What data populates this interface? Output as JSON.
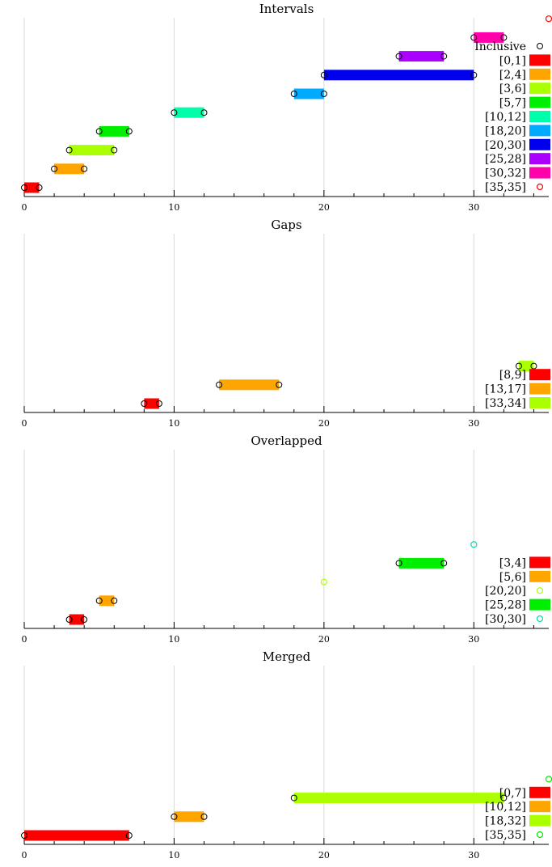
{
  "chart_data": [
    {
      "type": "interval",
      "title": "Intervals",
      "xlim": [
        0,
        35
      ],
      "xticks": [
        "0",
        "10",
        "20",
        "30"
      ],
      "grid": true,
      "legend_position": "right",
      "legend_header": "Inclusive",
      "series": [
        {
          "name": "[0,1]",
          "start": 0,
          "end": 1,
          "color": "#ff0000"
        },
        {
          "name": "[2,4]",
          "start": 2,
          "end": 4,
          "color": "#ffa500"
        },
        {
          "name": "[3,6]",
          "start": 3,
          "end": 6,
          "color": "#aaff00"
        },
        {
          "name": "[5,7]",
          "start": 5,
          "end": 7,
          "color": "#00ee00"
        },
        {
          "name": "[10,12]",
          "start": 10,
          "end": 12,
          "color": "#00ffaa"
        },
        {
          "name": "[18,20]",
          "start": 18,
          "end": 20,
          "color": "#00aaff"
        },
        {
          "name": "[20,30]",
          "start": 20,
          "end": 30,
          "color": "#0000ee"
        },
        {
          "name": "[25,28]",
          "start": 25,
          "end": 28,
          "color": "#aa00ff"
        },
        {
          "name": "[30,32]",
          "start": 30,
          "end": 32,
          "color": "#ff00aa"
        },
        {
          "name": "[35,35]",
          "start": 35,
          "end": 35,
          "color": "#ff0000"
        }
      ]
    },
    {
      "type": "interval",
      "title": "Gaps",
      "xlim": [
        0,
        35
      ],
      "xticks": [
        "0",
        "10",
        "20",
        "30"
      ],
      "grid": true,
      "legend_position": "right",
      "series": [
        {
          "name": "[8,9]",
          "start": 8,
          "end": 9,
          "color": "#ff0000"
        },
        {
          "name": "[13,17]",
          "start": 13,
          "end": 17,
          "color": "#ffa500"
        },
        {
          "name": "[33,34]",
          "start": 33,
          "end": 34,
          "color": "#aaff00"
        }
      ]
    },
    {
      "type": "interval",
      "title": "Overlapped",
      "xlim": [
        0,
        35
      ],
      "xticks": [
        "0",
        "10",
        "20",
        "30"
      ],
      "grid": true,
      "legend_position": "right",
      "series": [
        {
          "name": "[3,4]",
          "start": 3,
          "end": 4,
          "color": "#ff0000"
        },
        {
          "name": "[5,6]",
          "start": 5,
          "end": 6,
          "color": "#ffa500"
        },
        {
          "name": "[20,20]",
          "start": 20,
          "end": 20,
          "color": "#aaff00"
        },
        {
          "name": "[25,28]",
          "start": 25,
          "end": 28,
          "color": "#00ee00"
        },
        {
          "name": "[30,30]",
          "start": 30,
          "end": 30,
          "color": "#00ddaa"
        }
      ]
    },
    {
      "type": "interval",
      "title": "Merged",
      "xlim": [
        0,
        35
      ],
      "xticks": [
        "0",
        "10",
        "20",
        "30"
      ],
      "grid": true,
      "legend_position": "right",
      "series": [
        {
          "name": "[0,7]",
          "start": 0,
          "end": 7,
          "color": "#ff0000"
        },
        {
          "name": "[10,12]",
          "start": 10,
          "end": 12,
          "color": "#ffa500"
        },
        {
          "name": "[18,32]",
          "start": 18,
          "end": 32,
          "color": "#aaff00"
        },
        {
          "name": "[35,35]",
          "start": 35,
          "end": 35,
          "color": "#00ee00"
        }
      ]
    }
  ]
}
